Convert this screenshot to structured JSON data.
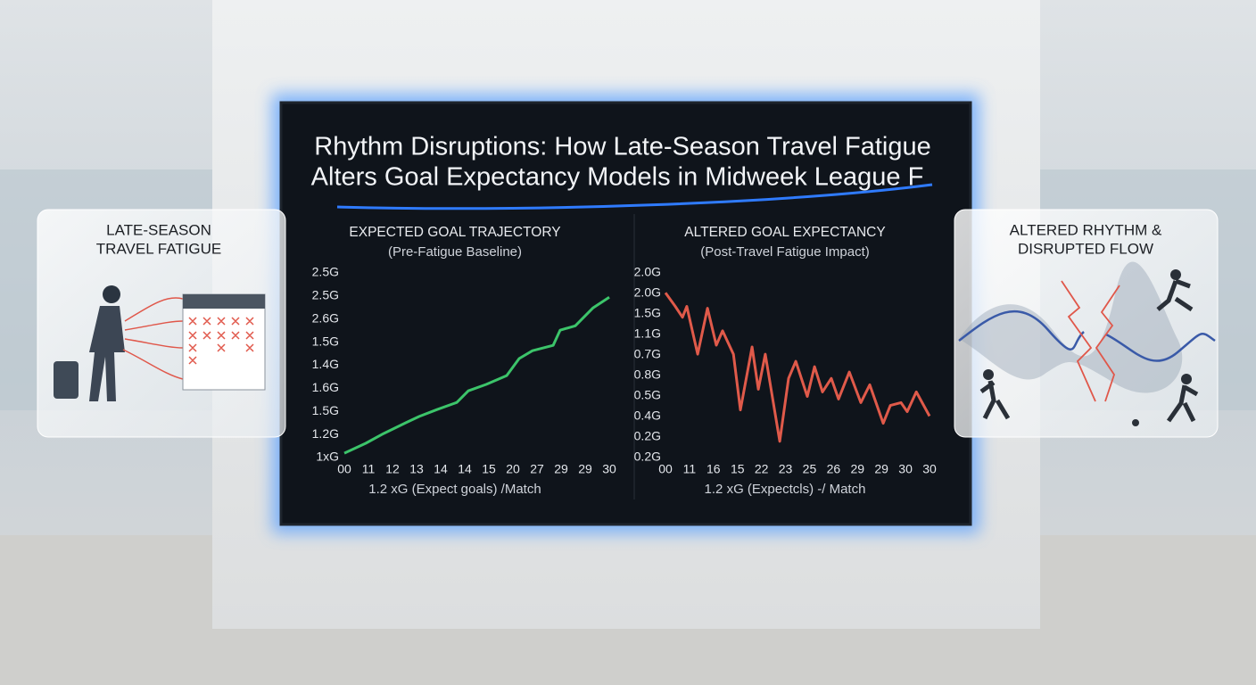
{
  "title_lines": [
    "Rhythm Disruptions: How Late-Season Travel Fatigue",
    "Alters Goal Expectancy Models in Midweek League F"
  ],
  "left_panel": {
    "title_lines": [
      "LATE-SEASON",
      "TRAVEL FATIGUE"
    ]
  },
  "right_panel": {
    "title_lines": [
      "ALTERED RHYTHM &",
      "DISRUPTED FLOW"
    ]
  },
  "chart_data": [
    {
      "type": "line",
      "title": "EXPECTED GOAL TRAJECTORY",
      "subtitle": "(Pre-Fatigue Baseline)",
      "x_label": "1.2 xG (Expect goals) /Match",
      "series": [
        {
          "color": "#3cc46a",
          "x": [
            0,
            0.89,
            1.63,
            2.56,
            3.11,
            3.85,
            4.67,
            5.15,
            5.89,
            6.74,
            7.26,
            7.81,
            8.67,
            8.96,
            9.59,
            10.33,
            11
          ],
          "values": [
            0.19,
            0.62,
            1.04,
            1.51,
            1.78,
            2.08,
            2.39,
            2.89,
            3.17,
            3.55,
            4.29,
            4.63,
            4.86,
            5.52,
            5.71,
            6.49,
            6.95
          ]
        }
      ],
      "xlim": [
        0,
        11
      ],
      "xticks": [
        {
          "value": 0,
          "label": "00"
        },
        {
          "value": 1,
          "label": "11"
        },
        {
          "value": 2,
          "label": "12"
        },
        {
          "value": 3,
          "label": "13"
        },
        {
          "value": 4,
          "label": "14"
        },
        {
          "value": 5,
          "label": "14"
        },
        {
          "value": 6,
          "label": "15"
        },
        {
          "value": 7,
          "label": "20"
        },
        {
          "value": 8,
          "label": "27"
        },
        {
          "value": 9,
          "label": "29"
        },
        {
          "value": 10,
          "label": "29"
        },
        {
          "value": 11,
          "label": "30"
        }
      ],
      "ylim": [
        0,
        8
      ],
      "yticks": [
        {
          "value": 0,
          "label": "1xG"
        },
        {
          "value": 1,
          "label": "1.2G"
        },
        {
          "value": 2,
          "label": "1.5G"
        },
        {
          "value": 3,
          "label": "1.6G"
        },
        {
          "value": 4,
          "label": "1.4G"
        },
        {
          "value": 5,
          "label": "1.5G"
        },
        {
          "value": 6,
          "label": "2.6G"
        },
        {
          "value": 7,
          "label": "2.5G"
        },
        {
          "value": 8,
          "label": "2.5G"
        }
      ]
    },
    {
      "type": "line",
      "title": "ALTERED GOAL EXPECTANCY",
      "subtitle": "(Post-Travel Fatigue Impact)",
      "x_label": "1.2 xG (Expectcls) -/ Match",
      "series": [
        {
          "color": "#e05a4a",
          "x": [
            0,
            0.41,
            0.71,
            0.89,
            1.34,
            1.75,
            2.12,
            2.38,
            2.83,
            3.12,
            3.61,
            3.87,
            4.16,
            4.42,
            4.76,
            5.13,
            5.43,
            5.91,
            6.21,
            6.54,
            6.91,
            7.21,
            7.66,
            8.14,
            8.51,
            9.07,
            9.37,
            9.81,
            10.07,
            10.45,
            11
          ],
          "values": [
            8.03,
            7.37,
            6.84,
            7.37,
            5.04,
            7.28,
            5.48,
            6.18,
            5.04,
            2.32,
            5.39,
            3.33,
            5.04,
            3.2,
            0.79,
            3.86,
            4.69,
            2.98,
            4.43,
            3.2,
            3.86,
            2.85,
            4.17,
            2.68,
            3.55,
            1.67,
            2.54,
            2.68,
            2.24,
            3.2,
            2.02
          ]
        }
      ],
      "xlim": [
        0,
        11
      ],
      "xticks": [
        {
          "value": 0,
          "label": "00"
        },
        {
          "value": 1,
          "label": "11"
        },
        {
          "value": 2,
          "label": "16"
        },
        {
          "value": 3,
          "label": "15"
        },
        {
          "value": 4,
          "label": "22"
        },
        {
          "value": 5,
          "label": "23"
        },
        {
          "value": 6,
          "label": "25"
        },
        {
          "value": 7,
          "label": "26"
        },
        {
          "value": 8,
          "label": "29"
        },
        {
          "value": 9,
          "label": "29"
        },
        {
          "value": 10,
          "label": "30"
        },
        {
          "value": 11,
          "label": "30"
        }
      ],
      "ylim": [
        0,
        9
      ],
      "yticks": [
        {
          "value": 0,
          "label": "0.2G"
        },
        {
          "value": 1,
          "label": "0.2G"
        },
        {
          "value": 2,
          "label": "0.4G"
        },
        {
          "value": 3,
          "label": "0.5G"
        },
        {
          "value": 4,
          "label": "0.8G"
        },
        {
          "value": 5,
          "label": "0.7G"
        },
        {
          "value": 6,
          "label": "1.1G"
        },
        {
          "value": 7,
          "label": "1.5G"
        },
        {
          "value": 8,
          "label": "2.0G"
        },
        {
          "value": 9,
          "label": "2.0G"
        }
      ]
    }
  ]
}
